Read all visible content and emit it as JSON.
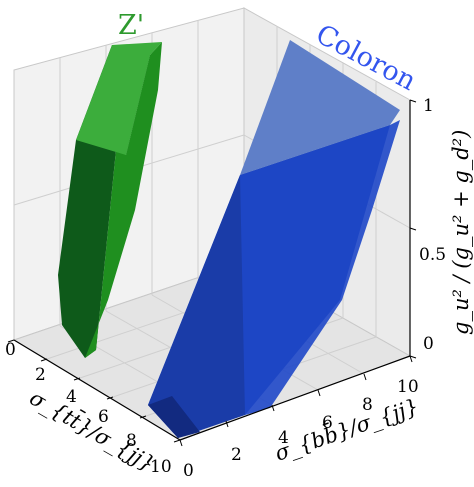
{
  "chart_data": {
    "type": "3d-region",
    "x_axis": {
      "label": "σ_{tt̄}/σ_{jj}",
      "ticks": [
        "0",
        "2",
        "4",
        "6",
        "8",
        "10"
      ],
      "range": [
        0,
        10
      ]
    },
    "y_axis": {
      "label": "σ_{bb̄}/σ_{jj}",
      "ticks": [
        "0",
        "2",
        "4",
        "6",
        "8",
        "10"
      ],
      "range": [
        0,
        10
      ]
    },
    "z_axis": {
      "label": "g_u² / (g_u² + g_d²)",
      "ticks": [
        "0",
        "0.5",
        "1"
      ],
      "range": [
        0,
        1
      ]
    },
    "grid": true,
    "series": [
      {
        "name": "Z'",
        "color": "#1f8f1f",
        "color_dark": "#0e5a1a",
        "color_light": "#4db84d"
      },
      {
        "name": "Coloron",
        "color": "#1f3fd0",
        "color_dark": "#13298f",
        "color_light": "#5f7fc8"
      }
    ]
  }
}
